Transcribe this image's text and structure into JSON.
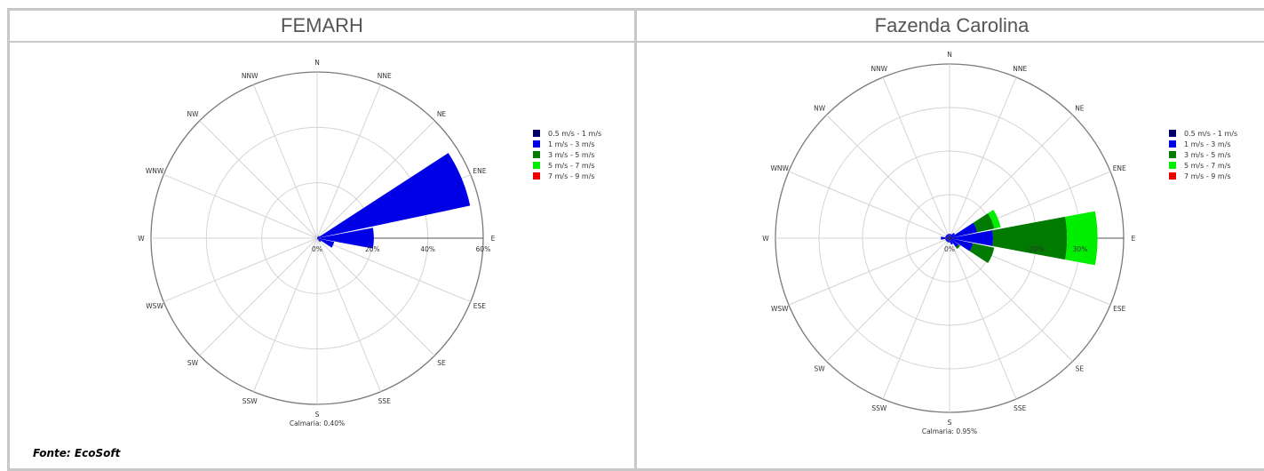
{
  "source_note": "Fonte: EcoSoft",
  "legend_colors": [
    "#000066",
    "#0000e6",
    "#007a00",
    "#00ee00",
    "#ee0000"
  ],
  "chart_data": [
    {
      "type": "windrose",
      "title": "FEMARH",
      "directions": [
        "N",
        "NNE",
        "NE",
        "ENE",
        "E",
        "ESE",
        "SE",
        "SSE",
        "S",
        "SSW",
        "SW",
        "WSW",
        "W",
        "WNW",
        "NW",
        "NNW"
      ],
      "radial_ticks": [
        "0%",
        "20%",
        "40%",
        "60%"
      ],
      "rmax": 60,
      "calm": "Calmaria: 0.40%",
      "legend": [
        "0.5 m/s - 1 m/s",
        "1 m/s - 3 m/s",
        "3 m/s - 5 m/s",
        "5 m/s - 7 m/s",
        "7 m/s - 9 m/s"
      ],
      "legend_position": "right",
      "series": [
        {
          "name": "0.5 m/s - 1 m/s",
          "values": [
            0,
            0,
            0,
            0.5,
            0.5,
            0.3,
            0.2,
            0,
            0,
            0,
            0,
            0,
            0,
            0,
            0,
            0
          ]
        },
        {
          "name": "1 m/s - 3 m/s",
          "values": [
            0,
            0.5,
            1.0,
            56.0,
            20.0,
            6.0,
            1.5,
            0.5,
            0,
            0,
            0,
            0,
            0,
            0,
            0,
            0
          ]
        },
        {
          "name": "3 m/s - 5 m/s",
          "values": [
            0,
            0,
            0,
            0,
            0,
            0,
            0,
            0,
            0,
            0,
            0,
            0,
            0,
            0,
            0,
            0
          ]
        },
        {
          "name": "5 m/s - 7 m/s",
          "values": [
            0,
            0,
            0,
            0,
            0,
            0,
            0,
            0,
            0,
            0,
            0,
            0,
            0,
            0,
            0,
            0
          ]
        },
        {
          "name": "7 m/s - 9 m/s",
          "values": [
            0,
            0,
            0,
            0,
            0,
            0,
            0,
            0,
            0,
            0,
            0,
            0,
            0,
            0,
            0,
            0
          ]
        }
      ]
    },
    {
      "type": "windrose",
      "title": "Fazenda Carolina",
      "directions": [
        "N",
        "NNE",
        "NE",
        "ENE",
        "E",
        "ESE",
        "SE",
        "SSE",
        "S",
        "SSW",
        "SW",
        "WSW",
        "W",
        "WNW",
        "NW",
        "NNW"
      ],
      "radial_ticks": [
        "0%",
        "20%",
        "30%"
      ],
      "rmax": 40,
      "calm": "Calmaria: 0.95%",
      "legend": [
        "0.5 m/s - 1 m/s",
        "1 m/s - 3 m/s",
        "3 m/s - 5 m/s",
        "5 m/s - 7 m/s",
        "7 m/s - 9 m/s"
      ],
      "legend_position": "right",
      "series": [
        {
          "name": "0.5 m/s - 1 m/s",
          "values": [
            0.5,
            0.5,
            0.5,
            0.5,
            1.0,
            0.5,
            0.5,
            0.5,
            0.5,
            0.5,
            0.5,
            0.5,
            1.0,
            0.5,
            0.5,
            0.5
          ]
        },
        {
          "name": "1 m/s - 3 m/s",
          "values": [
            0.5,
            0.5,
            1.0,
            6.0,
            9.0,
            5.0,
            2.0,
            1.0,
            0.5,
            0.5,
            0.5,
            0.5,
            1.0,
            0.5,
            0.5,
            0.5
          ]
        },
        {
          "name": "3 m/s - 5 m/s",
          "values": [
            0,
            0,
            0,
            4.0,
            17.0,
            5.0,
            0.5,
            0,
            0,
            0,
            0,
            0,
            0,
            0,
            0,
            0
          ]
        },
        {
          "name": "5 m/s - 7 m/s",
          "values": [
            0,
            0,
            0,
            1.5,
            7.0,
            0,
            0,
            0,
            0,
            0,
            0,
            0,
            0,
            0,
            0,
            0
          ]
        },
        {
          "name": "7 m/s - 9 m/s",
          "values": [
            0,
            0,
            0,
            0,
            0,
            0,
            0,
            0,
            0,
            0,
            0,
            0,
            0,
            0,
            0,
            0
          ]
        }
      ]
    }
  ]
}
